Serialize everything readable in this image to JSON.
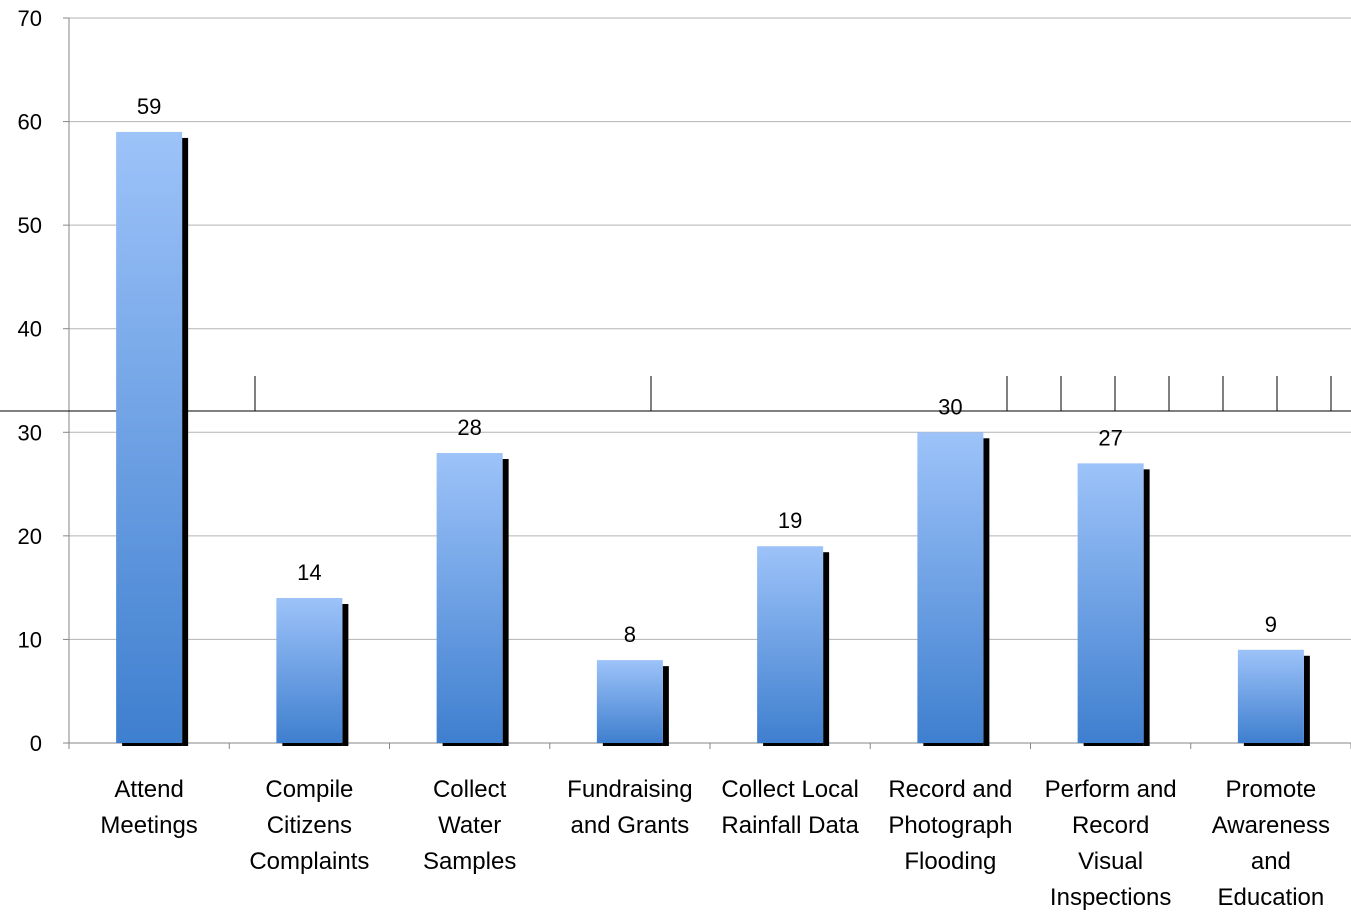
{
  "chart_data": {
    "type": "bar",
    "title": "",
    "xlabel": "",
    "ylabel": "",
    "ylim": [
      0,
      70
    ],
    "yticks": [
      0,
      10,
      20,
      30,
      40,
      50,
      60,
      70
    ],
    "grid": true,
    "legend": "none",
    "categories": [
      [
        "Attend",
        "Meetings"
      ],
      [
        "Compile",
        "Citizens",
        "Complaints"
      ],
      [
        "Collect",
        "Water",
        "Samples"
      ],
      [
        "Fundraising",
        "and Grants"
      ],
      [
        "Collect Local",
        "Rainfall Data"
      ],
      [
        "Record and",
        "Photograph",
        "Flooding"
      ],
      [
        "Perform and",
        "Record",
        "Visual",
        "Inspections"
      ],
      [
        "Promote",
        "Awareness",
        "and",
        "Education"
      ]
    ],
    "values": [
      59,
      14,
      28,
      8,
      19,
      30,
      27,
      9
    ],
    "data_labels": [
      "59",
      "14",
      "28",
      "8",
      "19",
      "30",
      "27",
      "9"
    ],
    "colors": {
      "bar_top": "#9dc3f9",
      "bar_bottom": "#3f7fcf",
      "bar_shadow": "#000000",
      "gridline": "#b3b3b3",
      "axis": "#868686"
    }
  }
}
